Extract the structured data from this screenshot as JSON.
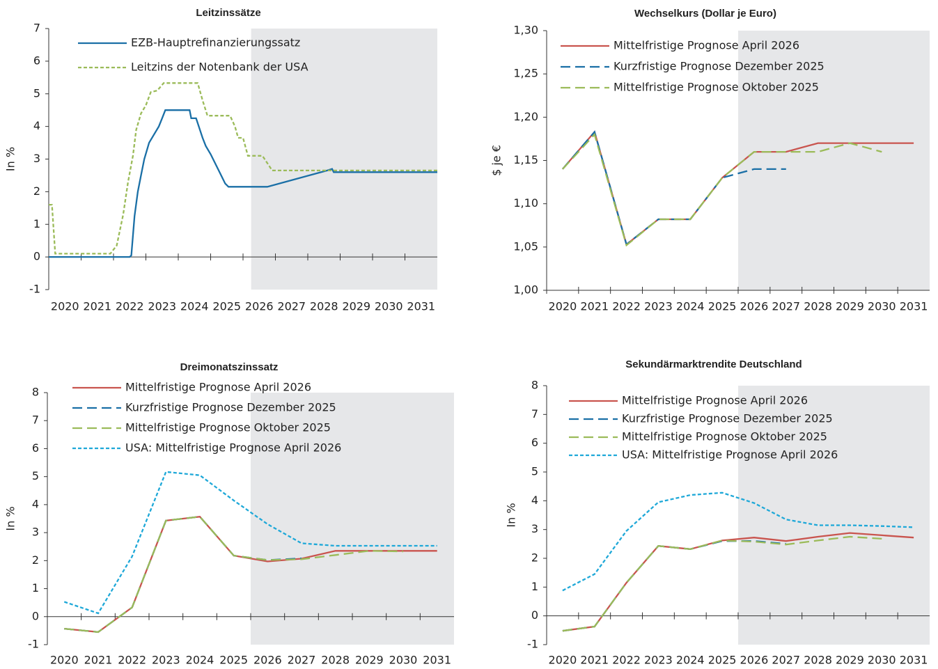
{
  "chart_data": [
    {
      "type": "line",
      "title": "Leitzinssätze",
      "ylabel": "In %",
      "xlim": [
        2020,
        2032
      ],
      "xticks": [
        2020,
        2021,
        2022,
        2023,
        2024,
        2025,
        2026,
        2027,
        2028,
        2029,
        2030,
        2031
      ],
      "ylim": [
        -1,
        7
      ],
      "yticks": [
        -1,
        0,
        1,
        2,
        3,
        4,
        5,
        6,
        7
      ],
      "shaded_region": [
        2026.25,
        2032
      ],
      "shade_color": "#e6e7e9",
      "series": [
        {
          "name": "EZB-Hauptrefinanzierungssatz",
          "color": "#1a6fa6",
          "dash": "solid",
          "x": [
            2020,
            2022.5,
            2022.55,
            2022.65,
            2022.75,
            2022.85,
            2022.95,
            2023.1,
            2023.25,
            2023.4,
            2023.5,
            2023.6,
            2024.35,
            2024.4,
            2024.55,
            2024.75,
            2024.85,
            2025,
            2025.25,
            2025.45,
            2025.55,
            2026.75,
            2028.6,
            2028.75,
            2028.8,
            2032
          ],
          "values": [
            0,
            0,
            0.05,
            1.25,
            2.0,
            2.5,
            3.0,
            3.5,
            3.75,
            4.0,
            4.25,
            4.5,
            4.5,
            4.25,
            4.25,
            3.65,
            3.4,
            3.15,
            2.65,
            2.25,
            2.15,
            2.15,
            2.65,
            2.7,
            2.6,
            2.6
          ]
        },
        {
          "name": "Leitzins der Notenbank der USA",
          "color": "#9bbb59",
          "dash": "dotted",
          "x": [
            2020,
            2020.1,
            2020.2,
            2021.9,
            2022.1,
            2022.3,
            2022.45,
            2022.6,
            2022.7,
            2022.85,
            2023,
            2023.15,
            2023.35,
            2023.55,
            2024.6,
            2024.75,
            2024.9,
            2025.6,
            2025.75,
            2025.85,
            2026,
            2026.15,
            2026.6,
            2026.9,
            2032
          ],
          "values": [
            1.6,
            1.6,
            0.1,
            0.1,
            0.35,
            1.3,
            2.3,
            3.1,
            3.9,
            4.4,
            4.65,
            5.05,
            5.1,
            5.33,
            5.33,
            4.8,
            4.33,
            4.33,
            4.0,
            3.65,
            3.65,
            3.1,
            3.1,
            2.65,
            2.65
          ]
        }
      ]
    },
    {
      "type": "line",
      "title": "Wechselkurs (Dollar je Euro)",
      "ylabel": "$ je €",
      "xlim": [
        2020,
        2032
      ],
      "xticks": [
        2020,
        2021,
        2022,
        2023,
        2024,
        2025,
        2026,
        2027,
        2028,
        2029,
        2030,
        2031
      ],
      "ylim": [
        1.0,
        1.3
      ],
      "yticks": [
        {
          "value": 1.0,
          "label": "1,00"
        },
        {
          "value": 1.05,
          "label": "1,05"
        },
        {
          "value": 1.1,
          "label": "1,10"
        },
        {
          "value": 1.15,
          "label": "1,15"
        },
        {
          "value": 1.2,
          "label": "1,20"
        },
        {
          "value": 1.25,
          "label": "1,25"
        },
        {
          "value": 1.3,
          "label": "1,30"
        }
      ],
      "shaded_region": [
        2026,
        2032
      ],
      "shade_color": "#e6e7e9",
      "x": [
        2020.5,
        2021.5,
        2022.5,
        2023.5,
        2024.5,
        2025.5,
        2026.5,
        2027.5,
        2028.5,
        2029.5,
        2030.5,
        2031.5
      ],
      "series": [
        {
          "name": "Mittelfristige Prognose April 2026",
          "color": "#c9544e",
          "dash": "solid",
          "values": [
            1.14,
            1.183,
            1.053,
            1.082,
            1.082,
            1.13,
            1.16,
            1.16,
            1.17,
            1.17,
            1.17,
            1.17
          ]
        },
        {
          "name": "Kurzfristige Prognose Dezember 2025",
          "color": "#1a6fa6",
          "dash": "dashed",
          "values": [
            1.14,
            1.183,
            1.053,
            1.082,
            1.082,
            1.13,
            1.14,
            1.14,
            null,
            null,
            null,
            null
          ]
        },
        {
          "name": "Mittelfristige Prognose Oktober 2025",
          "color": "#9bbb59",
          "dash": "dashed",
          "values": [
            1.14,
            1.18,
            1.052,
            1.082,
            1.082,
            1.13,
            1.16,
            1.16,
            1.16,
            1.17,
            1.16,
            null
          ]
        }
      ]
    },
    {
      "type": "line",
      "title": "Dreimonatszinssatz",
      "ylabel": "In %",
      "xlim": [
        2020,
        2032
      ],
      "xticks": [
        2020,
        2021,
        2022,
        2023,
        2024,
        2025,
        2026,
        2027,
        2028,
        2029,
        2030,
        2031
      ],
      "ylim": [
        -1,
        8
      ],
      "yticks": [
        -1,
        0,
        1,
        2,
        3,
        4,
        5,
        6,
        7,
        8
      ],
      "shaded_region": [
        2026,
        2032
      ],
      "shade_color": "#e6e7e9",
      "x": [
        2020.5,
        2021.5,
        2022.5,
        2023.5,
        2024.5,
        2025.5,
        2026.5,
        2027.5,
        2028.5,
        2029.5,
        2030.5,
        2031.5
      ],
      "series": [
        {
          "name": "Mittelfristige Prognose April 2026",
          "color": "#c9544e",
          "dash": "solid",
          "values": [
            -0.43,
            -0.55,
            0.33,
            3.43,
            3.57,
            2.18,
            1.97,
            2.07,
            2.35,
            2.35,
            2.35,
            2.35
          ]
        },
        {
          "name": "Kurzfristige Prognose Dezember 2025",
          "color": "#1a6fa6",
          "dash": "dashed",
          "values": [
            -0.43,
            -0.55,
            0.33,
            3.43,
            3.57,
            2.18,
            2.02,
            2.08,
            null,
            null,
            null,
            null
          ]
        },
        {
          "name": "Mittelfristige Prognose Oktober 2025",
          "color": "#9bbb59",
          "dash": "dashed",
          "values": [
            -0.43,
            -0.55,
            0.33,
            3.43,
            3.57,
            2.18,
            2.02,
            2.05,
            2.2,
            2.35,
            2.33,
            null
          ]
        },
        {
          "name": "USA: Mittelfristige Prognose April 2026",
          "color": "#1ea8d8",
          "dash": "dotted",
          "values": [
            0.53,
            0.12,
            2.15,
            5.17,
            5.05,
            4.15,
            3.3,
            2.62,
            2.53,
            2.53,
            2.53,
            2.53
          ]
        }
      ]
    },
    {
      "type": "line",
      "title": "Sekundärmarktrendite Deutschland",
      "ylabel": "In %",
      "xlim": [
        2020,
        2032
      ],
      "xticks": [
        2020,
        2021,
        2022,
        2023,
        2024,
        2025,
        2026,
        2027,
        2028,
        2029,
        2030,
        2031
      ],
      "ylim": [
        -1,
        8
      ],
      "yticks": [
        -1,
        0,
        1,
        2,
        3,
        4,
        5,
        6,
        7,
        8
      ],
      "shaded_region": [
        2026,
        2032
      ],
      "shade_color": "#e6e7e9",
      "x": [
        2020.5,
        2021.5,
        2022.5,
        2023.5,
        2024.5,
        2025.5,
        2026.5,
        2027.5,
        2028.5,
        2029.5,
        2030.5,
        2031.5
      ],
      "series": [
        {
          "name": "Mittelfristige Prognose April 2026",
          "color": "#c9544e",
          "dash": "solid",
          "values": [
            -0.52,
            -0.37,
            1.15,
            2.43,
            2.32,
            2.62,
            2.72,
            2.6,
            2.75,
            2.88,
            2.8,
            2.72
          ]
        },
        {
          "name": "Kurzfristige Prognose Dezember 2025",
          "color": "#1a6fa6",
          "dash": "dashed",
          "values": [
            -0.52,
            -0.37,
            1.15,
            2.43,
            2.32,
            2.6,
            2.6,
            2.5,
            null,
            null,
            null,
            null
          ]
        },
        {
          "name": "Mittelfristige Prognose Oktober 2025",
          "color": "#9bbb59",
          "dash": "dashed",
          "values": [
            -0.52,
            -0.37,
            1.15,
            2.43,
            2.32,
            2.62,
            2.58,
            2.48,
            2.62,
            2.75,
            2.68,
            null
          ]
        },
        {
          "name": "USA: Mittelfristige Prognose April 2026",
          "color": "#1ea8d8",
          "dash": "dotted",
          "values": [
            0.88,
            1.45,
            2.95,
            3.95,
            4.2,
            4.28,
            3.92,
            3.35,
            3.15,
            3.15,
            3.12,
            3.08
          ]
        }
      ]
    }
  ]
}
